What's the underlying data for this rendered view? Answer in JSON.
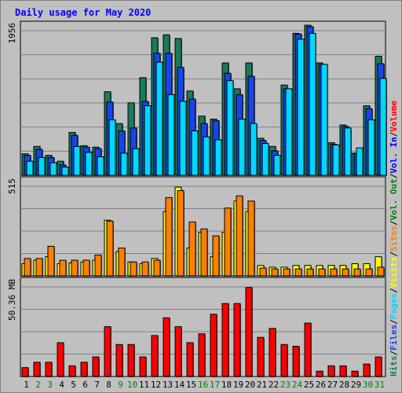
{
  "chart_data": {
    "type": "bar",
    "title": "Daily usage for May 2020",
    "days": [
      "1",
      "2",
      "3",
      "4",
      "5",
      "6",
      "7",
      "8",
      "9",
      "10",
      "11",
      "12",
      "13",
      "14",
      "15",
      "16",
      "17",
      "18",
      "19",
      "20",
      "21",
      "22",
      "23",
      "24",
      "25",
      "26",
      "27",
      "28",
      "29",
      "30",
      "31"
    ],
    "weekend_days": [
      "2",
      "3",
      "9",
      "10",
      "16",
      "17",
      "23",
      "24",
      "30",
      "31"
    ],
    "panels": [
      {
        "id": "top",
        "max_label": "1956",
        "max": 1956,
        "series": [
          {
            "name": "Hits",
            "color": "#1a7a5e",
            "values": [
              290,
              390,
              270,
              190,
              580,
              400,
              380,
              1130,
              700,
              980,
              1320,
              1860,
              1900,
              1850,
              1140,
              800,
              760,
              1520,
              1170,
              1520,
              500,
              390,
              1220,
              1920,
              2030,
              1520,
              440,
              680,
              300,
              940,
              1610
            ]
          },
          {
            "name": "Files",
            "color": "#1844e8",
            "values": [
              270,
              350,
              240,
              140,
              540,
              380,
              360,
              990,
              600,
              640,
              1000,
              1650,
              1650,
              1460,
              1030,
              700,
              740,
              1380,
              1090,
              1340,
              470,
              330,
              1170,
              1910,
              2010,
              1500,
              420,
              660,
              290,
              900,
              1510
            ]
          },
          {
            "name": "Pages",
            "color": "#00d8ff",
            "values": [
              190,
              240,
              170,
              110,
              390,
              310,
              250,
              750,
              300,
              360,
              940,
              1530,
              1090,
              1000,
              600,
              520,
              480,
              1280,
              760,
              700,
              430,
              270,
              1170,
              1840,
              1920,
              1500,
              410,
              640,
              370,
              750,
              1310
            ]
          }
        ]
      },
      {
        "id": "middle",
        "max_label": "515",
        "max": 515,
        "series": [
          {
            "name": "Visits",
            "color": "#ffff00",
            "values": [
              70,
              90,
              110,
              70,
              75,
              80,
              90,
              320,
              140,
              80,
              70,
              100,
              370,
              510,
              160,
              250,
              110,
              250,
              430,
              370,
              60,
              50,
              50,
              60,
              60,
              60,
              60,
              60,
              70,
              70,
              110
            ]
          },
          {
            "name": "Sites",
            "color": "#ff8000",
            "values": [
              100,
              100,
              170,
              90,
              90,
              90,
              120,
              315,
              160,
              80,
              80,
              90,
              450,
              490,
              310,
              270,
              230,
              390,
              460,
              430,
              45,
              40,
              40,
              40,
              40,
              40,
              40,
              40,
              40,
              40,
              50
            ]
          }
        ]
      },
      {
        "id": "bottom",
        "max_label": "50.36 MB",
        "max": 50.36,
        "series": [
          {
            "name": "Volume",
            "color": "#ff0000",
            "values": [
              5,
              8,
              8,
              19,
              6,
              8,
              11,
              28,
              18,
              18,
              11,
              23,
              33,
              28,
              19,
              24,
              35,
              41,
              41,
              50,
              22,
              27,
              18,
              17,
              30,
              3,
              6,
              6,
              3,
              7,
              11
            ]
          }
        ]
      }
    ],
    "legend_right": [
      {
        "text": "Hits",
        "color": "#1a7a5e"
      },
      {
        "text": "/",
        "color": "#000000"
      },
      {
        "text": "Files",
        "color": "#1844e8"
      },
      {
        "text": "/",
        "color": "#000000"
      },
      {
        "text": "Pages",
        "color": "#00d8ff"
      },
      {
        "text": "/",
        "color": "#000000"
      },
      {
        "text": "Visits",
        "color": "#ffff00"
      },
      {
        "text": "/",
        "color": "#000000"
      },
      {
        "text": "Sites",
        "color": "#ff8000"
      },
      {
        "text": "/",
        "color": "#000000"
      },
      {
        "text": "Vol. Out",
        "color": "#008000"
      },
      {
        "text": "/",
        "color": "#000000"
      },
      {
        "text": "Vol. In",
        "color": "#0000ff"
      },
      {
        "text": "/",
        "color": "#000000"
      },
      {
        "text": "Volume",
        "color": "#ff0000"
      }
    ]
  }
}
